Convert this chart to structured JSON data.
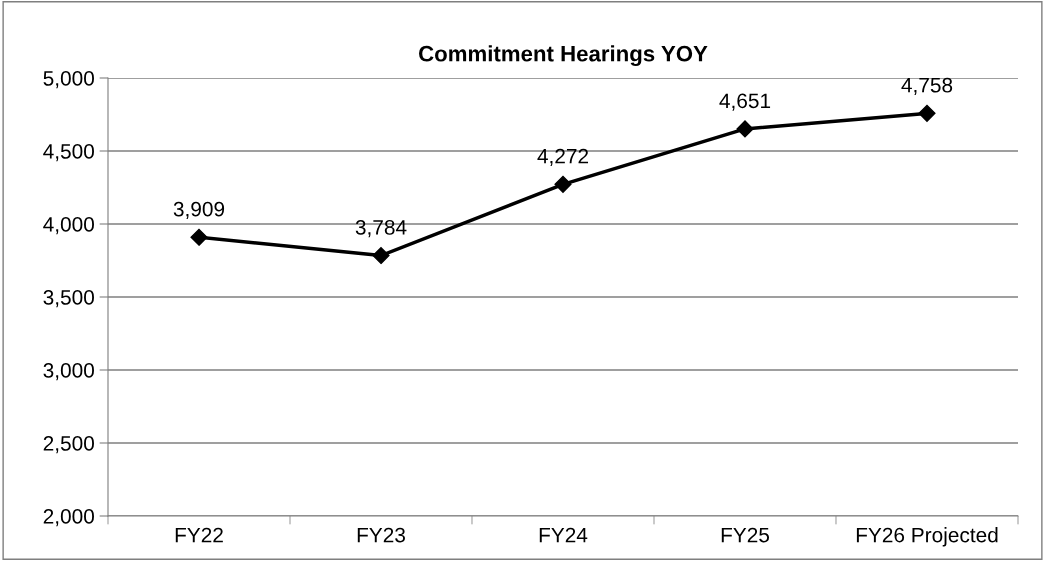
{
  "chart_data": {
    "type": "line",
    "title": "Commitment Hearings YOY",
    "categories": [
      "FY22",
      "FY23",
      "FY24",
      "FY25",
      "FY26 Projected"
    ],
    "series": [
      {
        "color": "#000000",
        "values": [
          3909,
          3784,
          4272,
          4651,
          4758
        ],
        "value_labels": [
          "3,909",
          "3,784",
          "4,272",
          "4,651",
          "4,758"
        ]
      }
    ],
    "ylim": [
      2000,
      5000
    ],
    "yticks": [
      {
        "value": 2000,
        "label": "2,000"
      },
      {
        "value": 2500,
        "label": "2,500"
      },
      {
        "value": 3000,
        "label": "3,000"
      },
      {
        "value": 3500,
        "label": "3,500"
      },
      {
        "value": 4000,
        "label": "4,000"
      },
      {
        "value": 4500,
        "label": "4,500"
      },
      {
        "value": 5000,
        "label": "5,000"
      }
    ],
    "grid": "y",
    "marker": "diamond",
    "line_style": "solid"
  }
}
